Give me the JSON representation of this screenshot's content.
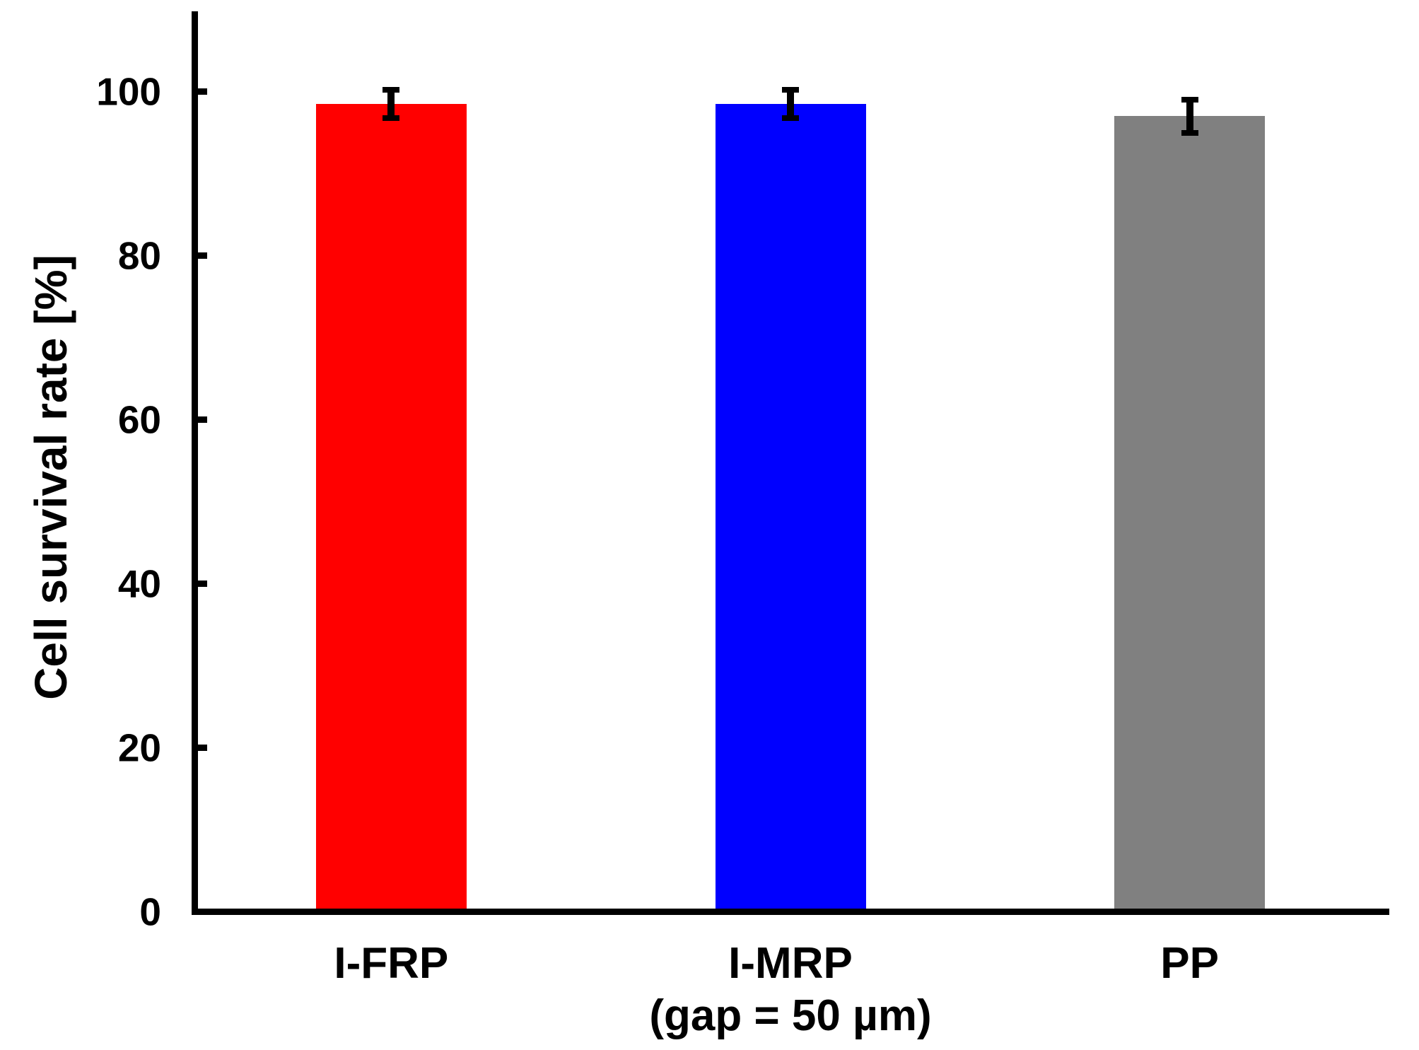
{
  "figure": {
    "background": "#ffffff",
    "text_color": "#000000"
  },
  "chart_data": {
    "type": "bar",
    "title": "",
    "categories": [
      "I-FRP",
      "I-MRP",
      "PP"
    ],
    "values": [
      98.5,
      98.5,
      97.0
    ],
    "errors": [
      1.7,
      1.7,
      2.0
    ],
    "bar_colors": [
      "#ff0000",
      "#0000ff",
      "#808080"
    ],
    "error_bar_color": "#000000",
    "xlabel": "(gap = 50 µm)",
    "ylabel": "Cell survival rate [%]",
    "ylim": [
      0,
      110
    ],
    "yticks": [
      0,
      20,
      40,
      60,
      80,
      100
    ],
    "grid": false,
    "legend_position": "none"
  }
}
